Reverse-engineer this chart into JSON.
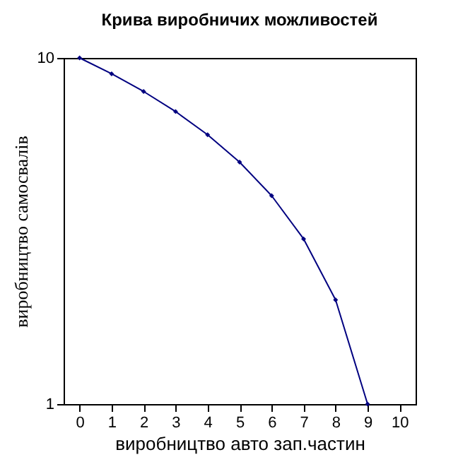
{
  "chart_data": {
    "type": "line",
    "title": "Крива виробничих можливостей",
    "xlabel": "виробництво авто зап.частин",
    "ylabel": "виробництво самосвалів",
    "x": [
      0,
      1,
      2,
      3,
      4,
      5,
      6,
      7,
      8,
      9
    ],
    "series": [
      {
        "color": "#000080",
        "values": [
          10,
          9,
          8,
          7,
          6,
          5,
          4,
          3,
          2,
          1
        ]
      }
    ],
    "xlim": [
      -0.5,
      10.5
    ],
    "xticks": [
      0,
      1,
      2,
      3,
      4,
      5,
      6,
      7,
      8,
      9,
      10
    ],
    "ylim": [
      1,
      10
    ],
    "yticks": [
      1,
      10
    ],
    "log": "y",
    "grid": false,
    "marker": "diamond",
    "line_style": "solid"
  }
}
